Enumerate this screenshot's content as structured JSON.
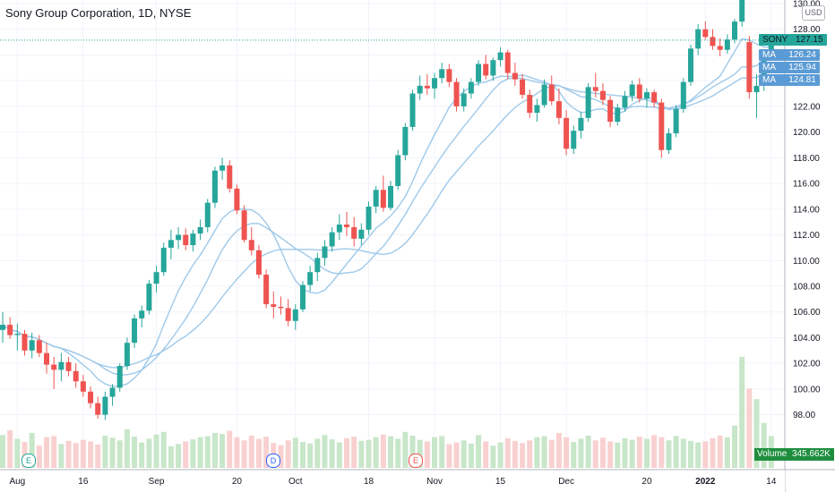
{
  "header": {
    "title": "Sony Group Corporation, 1D, NYSE"
  },
  "currency": "USD",
  "last": {
    "symbol": "SONY",
    "price": "127.15",
    "ma_label": "MA",
    "ma_values": [
      "126.24",
      "125.94",
      "124.81"
    ]
  },
  "volume": {
    "label": "Volume",
    "value": "345.662K"
  },
  "events": [
    "E",
    "D",
    "E"
  ],
  "colors": {
    "up": "#26a69a",
    "down": "#ef5350",
    "ma": "#9ec9ea",
    "volume_up": "#c8e6c9",
    "volume_down": "#f9d0d0",
    "last_line": "#26a69a",
    "ma_badge": "#5b9bd5"
  },
  "chart_data": {
    "type": "candlestick",
    "title": "Sony Group Corporation, 1D, NYSE",
    "ylim": [
      97,
      130
    ],
    "y_ticks": [
      "130.00",
      "128.00",
      "126.00",
      "124.00",
      "122.00",
      "120.00",
      "118.00",
      "116.00",
      "114.00",
      "112.00",
      "110.00",
      "108.00",
      "106.00",
      "104.00",
      "102.00",
      "100.00",
      "98.00"
    ],
    "x_tick_labels": [
      "Aug",
      "16",
      "Sep",
      "20",
      "Oct",
      "18",
      "Nov",
      "15",
      "Dec",
      "20",
      "2022",
      "14"
    ],
    "x_tick_bars": [
      2,
      11,
      21,
      32,
      40,
      50,
      59,
      68,
      77,
      88,
      96,
      105
    ],
    "ohlc": [
      [
        104.6,
        106.0,
        103.6,
        105.0
      ],
      [
        105.0,
        105.6,
        103.9,
        104.2
      ],
      [
        104.2,
        105.1,
        103.0,
        104.3
      ],
      [
        104.3,
        104.6,
        102.6,
        103.0
      ],
      [
        103.0,
        104.4,
        102.4,
        103.8
      ],
      [
        103.8,
        104.2,
        102.5,
        102.8
      ],
      [
        102.8,
        103.6,
        101.2,
        101.9
      ],
      [
        101.9,
        102.5,
        100.0,
        101.5
      ],
      [
        101.5,
        102.8,
        100.6,
        102.1
      ],
      [
        102.1,
        102.5,
        101.0,
        101.4
      ],
      [
        101.4,
        102.0,
        100.1,
        100.6
      ],
      [
        100.6,
        101.1,
        99.4,
        99.8
      ],
      [
        99.8,
        100.2,
        98.5,
        98.9
      ],
      [
        98.9,
        99.4,
        97.7,
        98.0
      ],
      [
        98.0,
        99.8,
        97.6,
        99.4
      ],
      [
        99.4,
        100.4,
        98.7,
        100.1
      ],
      [
        100.1,
        102.0,
        99.8,
        101.8
      ],
      [
        101.8,
        104.0,
        101.5,
        103.6
      ],
      [
        103.6,
        105.8,
        103.2,
        105.5
      ],
      [
        105.5,
        106.5,
        104.8,
        106.1
      ],
      [
        106.1,
        108.5,
        105.8,
        108.2
      ],
      [
        108.2,
        109.6,
        107.5,
        109.1
      ],
      [
        109.1,
        111.4,
        108.8,
        111.0
      ],
      [
        111.0,
        112.4,
        110.1,
        111.6
      ],
      [
        111.6,
        112.6,
        110.9,
        112.0
      ],
      [
        112.0,
        112.5,
        110.8,
        111.2
      ],
      [
        111.2,
        112.4,
        110.7,
        112.1
      ],
      [
        112.1,
        113.2,
        111.6,
        112.6
      ],
      [
        112.6,
        114.8,
        112.2,
        114.5
      ],
      [
        114.5,
        117.3,
        114.1,
        117.0
      ],
      [
        117.0,
        118.0,
        116.3,
        117.4
      ],
      [
        117.4,
        117.8,
        115.3,
        115.6
      ],
      [
        115.6,
        115.9,
        113.6,
        113.9
      ],
      [
        113.9,
        114.3,
        111.4,
        111.6
      ],
      [
        111.6,
        112.6,
        110.4,
        110.8
      ],
      [
        110.8,
        111.2,
        108.6,
        108.9
      ],
      [
        108.9,
        109.3,
        106.3,
        106.6
      ],
      [
        106.6,
        107.6,
        105.5,
        106.4
      ],
      [
        106.4,
        107.2,
        105.8,
        106.3
      ],
      [
        106.3,
        107.0,
        104.9,
        105.3
      ],
      [
        105.3,
        106.6,
        104.6,
        106.2
      ],
      [
        106.2,
        108.4,
        106.0,
        108.1
      ],
      [
        108.1,
        109.6,
        107.6,
        109.1
      ],
      [
        109.1,
        110.6,
        108.4,
        110.2
      ],
      [
        110.2,
        111.6,
        109.6,
        111.1
      ],
      [
        111.1,
        112.6,
        110.7,
        112.2
      ],
      [
        112.2,
        113.6,
        111.6,
        112.8
      ],
      [
        112.8,
        113.8,
        111.9,
        112.6
      ],
      [
        112.6,
        113.4,
        111.1,
        111.7
      ],
      [
        111.7,
        112.9,
        111.2,
        112.4
      ],
      [
        112.4,
        114.6,
        112.0,
        114.2
      ],
      [
        114.2,
        115.8,
        113.7,
        115.5
      ],
      [
        115.5,
        116.6,
        113.8,
        114.1
      ],
      [
        114.1,
        116.2,
        113.9,
        115.8
      ],
      [
        115.8,
        118.6,
        115.5,
        118.2
      ],
      [
        118.2,
        120.7,
        117.8,
        120.4
      ],
      [
        120.4,
        123.3,
        120.1,
        123.0
      ],
      [
        123.0,
        124.4,
        122.5,
        123.6
      ],
      [
        123.6,
        124.5,
        122.9,
        123.4
      ],
      [
        123.4,
        124.6,
        122.6,
        124.2
      ],
      [
        124.2,
        125.4,
        123.8,
        124.9
      ],
      [
        124.9,
        125.3,
        123.5,
        123.9
      ],
      [
        123.9,
        124.2,
        121.6,
        122.0
      ],
      [
        122.0,
        123.4,
        121.6,
        123.0
      ],
      [
        123.0,
        124.2,
        122.6,
        123.9
      ],
      [
        123.9,
        125.6,
        123.6,
        125.3
      ],
      [
        125.3,
        126.0,
        124.1,
        124.4
      ],
      [
        124.4,
        125.8,
        124.0,
        125.6
      ],
      [
        125.6,
        126.6,
        125.1,
        126.2
      ],
      [
        126.2,
        126.4,
        124.1,
        124.6
      ],
      [
        124.6,
        125.4,
        123.6,
        124.1
      ],
      [
        124.1,
        124.5,
        122.6,
        122.9
      ],
      [
        122.9,
        123.3,
        121.1,
        121.5
      ],
      [
        121.5,
        122.6,
        120.8,
        122.1
      ],
      [
        122.1,
        124.1,
        121.9,
        123.7
      ],
      [
        123.7,
        124.4,
        122.1,
        122.4
      ],
      [
        122.4,
        123.4,
        120.6,
        121.1
      ],
      [
        121.1,
        121.7,
        118.2,
        118.7
      ],
      [
        118.7,
        120.5,
        118.3,
        120.1
      ],
      [
        120.1,
        121.6,
        119.5,
        121.1
      ],
      [
        121.1,
        123.8,
        120.8,
        123.5
      ],
      [
        123.5,
        124.6,
        122.7,
        123.2
      ],
      [
        123.2,
        123.8,
        122.1,
        122.5
      ],
      [
        122.5,
        122.8,
        120.4,
        120.8
      ],
      [
        120.8,
        122.2,
        120.5,
        121.9
      ],
      [
        121.9,
        123.2,
        121.6,
        122.8
      ],
      [
        122.8,
        124.0,
        122.4,
        123.7
      ],
      [
        123.7,
        124.2,
        122.3,
        122.6
      ],
      [
        122.6,
        123.4,
        121.9,
        123.1
      ],
      [
        123.1,
        123.3,
        121.9,
        122.3
      ],
      [
        122.3,
        122.6,
        118.0,
        118.6
      ],
      [
        118.6,
        120.3,
        118.3,
        119.9
      ],
      [
        119.9,
        122.1,
        119.6,
        121.8
      ],
      [
        121.8,
        124.2,
        121.5,
        123.9
      ],
      [
        123.9,
        126.8,
        123.6,
        126.5
      ],
      [
        126.5,
        128.4,
        126.0,
        128.0
      ],
      [
        128.0,
        128.6,
        127.2,
        127.4
      ],
      [
        127.4,
        128.0,
        126.4,
        126.7
      ],
      [
        126.7,
        127.3,
        125.9,
        126.4
      ],
      [
        126.4,
        127.6,
        126.1,
        127.2
      ],
      [
        127.2,
        128.8,
        126.9,
        128.6
      ],
      [
        128.6,
        131.0,
        128.2,
        130.6
      ],
      [
        127.0,
        127.5,
        122.6,
        123.1
      ],
      [
        123.1,
        124.5,
        121.1,
        123.6
      ],
      [
        123.6,
        126.3,
        123.2,
        126.0
      ],
      [
        126.0,
        127.6,
        125.6,
        127.15
      ]
    ],
    "volume": [
      0.62,
      0.71,
      0.55,
      0.49,
      0.66,
      0.42,
      0.58,
      0.6,
      0.45,
      0.51,
      0.47,
      0.53,
      0.5,
      0.44,
      0.61,
      0.57,
      0.52,
      0.73,
      0.59,
      0.48,
      0.55,
      0.63,
      0.68,
      0.41,
      0.45,
      0.5,
      0.54,
      0.58,
      0.6,
      0.66,
      0.64,
      0.7,
      0.58,
      0.52,
      0.61,
      0.55,
      0.59,
      0.47,
      0.43,
      0.52,
      0.57,
      0.49,
      0.46,
      0.55,
      0.62,
      0.54,
      0.48,
      0.56,
      0.59,
      0.51,
      0.53,
      0.58,
      0.63,
      0.6,
      0.55,
      0.68,
      0.61,
      0.53,
      0.5,
      0.58,
      0.6,
      0.45,
      0.48,
      0.52,
      0.46,
      0.62,
      0.5,
      0.42,
      0.48,
      0.56,
      0.51,
      0.47,
      0.52,
      0.58,
      0.6,
      0.53,
      0.66,
      0.58,
      0.49,
      0.55,
      0.61,
      0.52,
      0.57,
      0.5,
      0.48,
      0.56,
      0.53,
      0.59,
      0.55,
      0.62,
      0.58,
      0.52,
      0.6,
      0.55,
      0.51,
      0.48,
      0.5,
      0.56,
      0.61,
      0.58,
      0.8,
      2.1,
      1.5,
      1.3,
      0.85,
      0.6
    ],
    "moving_averages": [
      {
        "label": "MA",
        "value": "126.24",
        "period": 9
      },
      {
        "label": "MA",
        "value": "125.94",
        "period": 14
      },
      {
        "label": "MA",
        "value": "124.81",
        "period": 21
      }
    ],
    "last_price": 127.15,
    "grid": true
  }
}
